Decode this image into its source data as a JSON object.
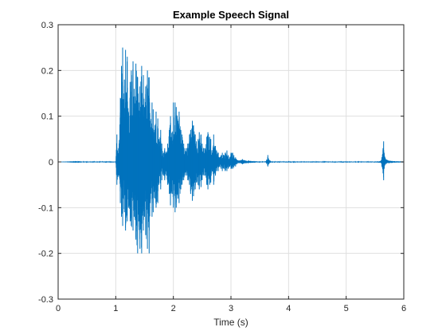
{
  "chart_data": {
    "type": "line",
    "title": "Example Speech Signal",
    "xlabel": "Time (s)",
    "ylabel": "",
    "xlim": [
      0,
      6
    ],
    "ylim": [
      -0.3,
      0.3
    ],
    "grid": true,
    "x_ticks": [
      0,
      1,
      2,
      3,
      4,
      5,
      6
    ],
    "x_tick_labels": [
      "0",
      "1",
      "2",
      "3",
      "4",
      "5",
      "6"
    ],
    "y_ticks": [
      0.3,
      0.2,
      0.1,
      0,
      -0.1,
      -0.2,
      -0.3
    ],
    "y_tick_labels": [
      "0.3",
      "0.2",
      "0.1",
      "0",
      "-0.1",
      "-0.2",
      "-0.3"
    ],
    "series": [
      {
        "color": "#0072BD",
        "x": [
          0.0,
          0.5,
          1.0,
          1.02,
          1.05,
          1.08,
          1.1,
          1.12,
          1.15,
          1.17,
          1.2,
          1.22,
          1.25,
          1.27,
          1.3,
          1.32,
          1.35,
          1.38,
          1.4,
          1.42,
          1.45,
          1.48,
          1.5,
          1.52,
          1.55,
          1.58,
          1.6,
          1.63,
          1.65,
          1.68,
          1.7,
          1.73,
          1.75,
          1.78,
          1.8,
          1.83,
          1.85,
          1.88,
          1.9,
          1.93,
          1.95,
          1.98,
          2.0,
          2.03,
          2.05,
          2.08,
          2.1,
          2.13,
          2.15,
          2.18,
          2.2,
          2.23,
          2.25,
          2.28,
          2.3,
          2.33,
          2.35,
          2.38,
          2.4,
          2.43,
          2.45,
          2.48,
          2.5,
          2.53,
          2.55,
          2.58,
          2.6,
          2.63,
          2.65,
          2.68,
          2.7,
          2.73,
          2.75,
          2.78,
          2.8,
          2.83,
          2.85,
          2.88,
          2.9,
          2.93,
          2.95,
          2.98,
          3.0,
          3.03,
          3.05,
          3.08,
          3.1,
          3.15,
          3.2,
          3.25,
          3.3,
          3.35,
          3.4,
          3.5,
          3.6,
          3.62,
          3.64,
          3.66,
          3.68,
          3.7,
          3.8,
          4.0,
          4.5,
          5.0,
          5.5,
          5.6,
          5.62,
          5.64,
          5.65,
          5.66,
          5.68,
          5.7,
          5.75,
          5.8,
          6.0
        ],
        "y_max": [
          0.0,
          0.001,
          0.001,
          0.06,
          0.03,
          0.14,
          0.21,
          0.25,
          0.18,
          0.245,
          0.23,
          0.11,
          0.175,
          0.2,
          0.22,
          0.16,
          0.215,
          0.185,
          0.13,
          0.165,
          0.21,
          0.19,
          0.12,
          0.165,
          0.2,
          0.185,
          0.09,
          0.13,
          0.115,
          0.08,
          0.11,
          0.095,
          0.05,
          0.07,
          0.04,
          0.02,
          0.03,
          0.02,
          0.04,
          0.07,
          0.1,
          0.065,
          0.13,
          0.13,
          0.12,
          0.09,
          0.11,
          0.07,
          0.06,
          0.04,
          0.03,
          0.03,
          0.04,
          0.06,
          0.07,
          0.09,
          0.08,
          0.06,
          0.045,
          0.05,
          0.065,
          0.06,
          0.04,
          0.03,
          0.03,
          0.055,
          0.065,
          0.055,
          0.05,
          0.02,
          0.06,
          0.035,
          0.025,
          0.02,
          0.01,
          0.015,
          0.02,
          0.015,
          0.02,
          0.025,
          0.015,
          0.01,
          0.02,
          0.02,
          0.015,
          0.01,
          0.005,
          0.003,
          0.006,
          0.003,
          0.003,
          0.002,
          0.002,
          0.001,
          0.001,
          0.005,
          0.015,
          0.005,
          0.003,
          0.001,
          0.001,
          0.001,
          0.001,
          0.001,
          0.001,
          0.002,
          0.01,
          0.03,
          0.045,
          0.02,
          0.008,
          0.005,
          0.003,
          0.002,
          0.001
        ],
        "y_min": [
          0.0,
          -0.001,
          -0.001,
          -0.05,
          -0.03,
          -0.09,
          -0.12,
          -0.14,
          -0.11,
          -0.15,
          -0.13,
          -0.1,
          -0.13,
          -0.14,
          -0.15,
          -0.12,
          -0.17,
          -0.2,
          -0.13,
          -0.19,
          -0.2,
          -0.15,
          -0.12,
          -0.16,
          -0.19,
          -0.2,
          -0.09,
          -0.12,
          -0.11,
          -0.08,
          -0.1,
          -0.09,
          -0.05,
          -0.06,
          -0.04,
          -0.03,
          -0.04,
          -0.03,
          -0.05,
          -0.07,
          -0.095,
          -0.07,
          -0.1,
          -0.11,
          -0.1,
          -0.08,
          -0.09,
          -0.06,
          -0.05,
          -0.04,
          -0.03,
          -0.03,
          -0.04,
          -0.05,
          -0.07,
          -0.085,
          -0.075,
          -0.06,
          -0.045,
          -0.05,
          -0.06,
          -0.055,
          -0.04,
          -0.03,
          -0.03,
          -0.05,
          -0.06,
          -0.05,
          -0.045,
          -0.02,
          -0.05,
          -0.03,
          -0.02,
          -0.02,
          -0.01,
          -0.015,
          -0.02,
          -0.015,
          -0.02,
          -0.02,
          -0.015,
          -0.01,
          -0.015,
          -0.015,
          -0.012,
          -0.01,
          -0.005,
          -0.003,
          -0.005,
          -0.003,
          -0.003,
          -0.002,
          -0.002,
          -0.001,
          -0.001,
          -0.004,
          -0.01,
          -0.004,
          -0.002,
          -0.001,
          -0.001,
          -0.001,
          -0.001,
          -0.001,
          -0.001,
          -0.002,
          -0.01,
          -0.025,
          -0.04,
          -0.015,
          -0.006,
          -0.004,
          -0.003,
          -0.002,
          -0.001
        ]
      }
    ]
  }
}
